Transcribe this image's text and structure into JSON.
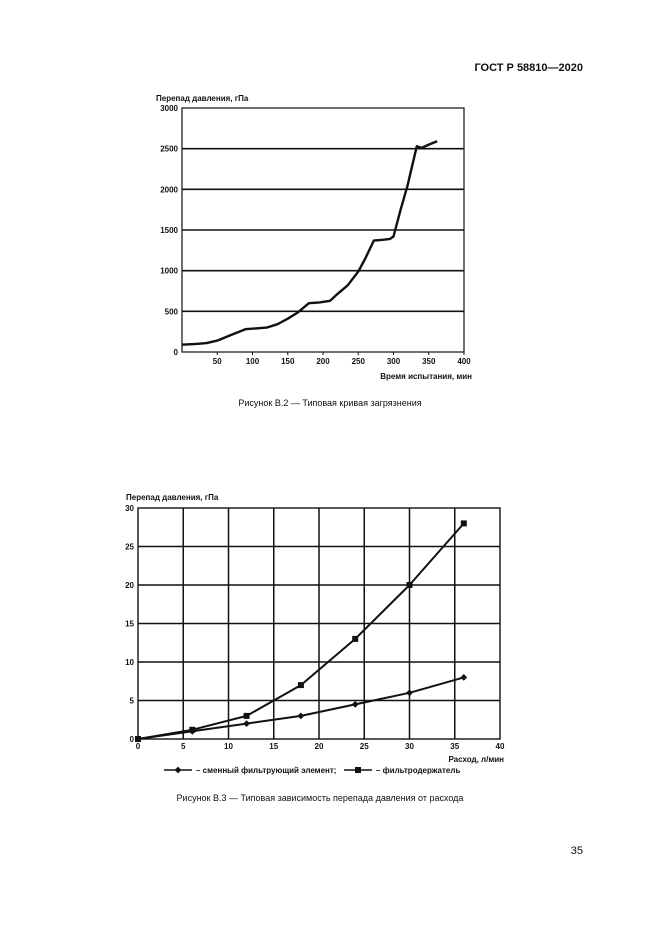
{
  "document": {
    "header": "ГОСТ Р 58810—2020",
    "page_number": "35",
    "figure1_caption": "Рисунок В.2 — Типовая кривая загрязнения",
    "figure2_caption": "Рисунок В.3 — Типовая зависимость перепада давления от расхода"
  },
  "chart_data": [
    {
      "type": "line",
      "title": "",
      "ylabel": "Перепад давления, гПа",
      "xlabel": "Время испытания, мин",
      "xlim": [
        0,
        400
      ],
      "ylim": [
        0,
        3000
      ],
      "xticks": [
        "50",
        "100",
        "150",
        "200",
        "250",
        "300",
        "350",
        "400"
      ],
      "yticks": [
        "0",
        "500",
        "1000",
        "1500",
        "2000",
        "2500",
        "3000"
      ],
      "grid": "horizontal",
      "series": [
        {
          "x": [
            0,
            20,
            35,
            50,
            70,
            90,
            105,
            120,
            135,
            150,
            165,
            180,
            195,
            210,
            220,
            235,
            250,
            260,
            272,
            285,
            295,
            300,
            310,
            320,
            333,
            340,
            350,
            362
          ],
          "y": [
            90,
            100,
            110,
            140,
            210,
            280,
            290,
            300,
            340,
            410,
            490,
            600,
            610,
            630,
            710,
            820,
            990,
            1150,
            1370,
            1380,
            1390,
            1420,
            1750,
            2050,
            2530,
            2510,
            2550,
            2590
          ]
        }
      ]
    },
    {
      "type": "line",
      "title": "",
      "ylabel": "Перепад давления, гПа",
      "xlabel": "Расход, л/мин",
      "xlim": [
        0,
        40
      ],
      "ylim": [
        0,
        30
      ],
      "xticks": [
        "0",
        "5",
        "10",
        "15",
        "20",
        "25",
        "30",
        "35",
        "40"
      ],
      "yticks": [
        "0",
        "5",
        "10",
        "15",
        "20",
        "25",
        "30"
      ],
      "grid": "both",
      "legend": "bottom",
      "series": [
        {
          "name": "сменный фильтрующий элемент;",
          "marker": "diamond",
          "x": [
            0,
            6,
            12,
            18,
            24,
            30,
            36
          ],
          "y": [
            0,
            1,
            2,
            3,
            4.5,
            6,
            8
          ]
        },
        {
          "name": "фильтродержатель",
          "marker": "square",
          "x": [
            0,
            6,
            12,
            18,
            24,
            30,
            36
          ],
          "y": [
            0,
            1.2,
            3,
            7,
            13,
            20,
            28
          ]
        }
      ]
    }
  ]
}
